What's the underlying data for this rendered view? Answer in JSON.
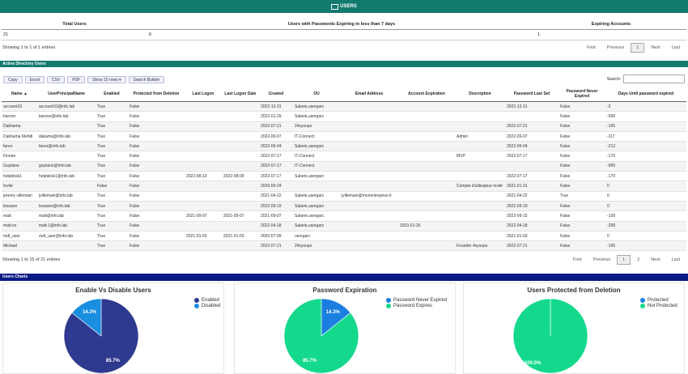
{
  "header": {
    "title": "USERS",
    "icon": "mail-icon"
  },
  "summary": {
    "headers": [
      "Total Users",
      "Users with Passwords Expiring in less than 7 days",
      "Expiring Accounts"
    ],
    "values": [
      "21",
      "6",
      "1"
    ],
    "info": "Showing 1 to 1 of 1 entries",
    "pager": {
      "first": "First",
      "previous": "Previous",
      "page": "1",
      "next": "Next",
      "last": "Last"
    }
  },
  "ad_section": {
    "title": "Active Directory Users",
    "buttons": [
      "Copy",
      "Excel",
      "CSV",
      "PDF",
      "Show 15 rows ▾",
      "Search Builder"
    ],
    "search_label": "Search:",
    "search_value": "",
    "columns": [
      "Name ▲",
      "UserPrincipalName",
      "Enabled",
      "Protected from Deletion",
      "Last Logon",
      "Last Logon Date",
      "Created",
      "OU",
      "Email Address",
      "Account Expiration",
      "Description",
      "Password Last Set",
      "Password Never Expired",
      "Days Until password expired"
    ],
    "rows": [
      [
        "account10",
        "account10@info.lab",
        "True",
        "False",
        "",
        "",
        "2022-12-31",
        "Salarie,usergarc",
        "",
        "",
        "",
        "2022-12-31",
        "False",
        "-2"
      ],
      [
        "barzon",
        "barzon@info.lab",
        "True",
        "False",
        "",
        "",
        "2022-01-29",
        "Salarie,usergarc",
        "",
        "",
        "",
        "",
        "False",
        "-999"
      ],
      [
        "Dakhama",
        "",
        "True",
        "False",
        "",
        "",
        "2022-07-21",
        "24sysops",
        "",
        "",
        "",
        "2022-07-21",
        "False",
        "-165"
      ],
      [
        "Dakhama Mehdi",
        "dakama@info.lab",
        "True",
        "False",
        "",
        "",
        "2022-09-07",
        "IT-Connect",
        "",
        "",
        "Admin",
        "2022-09-07",
        "False",
        "-117"
      ],
      [
        "fanor",
        "fanor@info.lab",
        "True",
        "False",
        "",
        "",
        "2022-06-04",
        "Salarie,usergarc",
        "",
        "",
        "",
        "2022-06-04",
        "False",
        "-212"
      ],
      [
        "Florian",
        "",
        "True",
        "False",
        "",
        "",
        "2022-07-17",
        "IT-Connect",
        "",
        "",
        "MVP",
        "2022-07-17",
        "False",
        "-170"
      ],
      [
        "Guylaine",
        "guylaine@info.lab",
        "True",
        "False",
        "",
        "",
        "2022-07-17",
        "IT-Connect",
        "",
        "",
        "",
        "",
        "False",
        "-999"
      ],
      [
        "helpdesk1",
        "helpdesk1@info.lab",
        "True",
        "False",
        "2022-08-10",
        "2022-08-09",
        "2022-07-17",
        "Salarie,usergarc",
        "",
        "",
        "",
        "2022-07-17",
        "False",
        "-170"
      ],
      [
        "Invité",
        "",
        "False",
        "False",
        "",
        "",
        "2020-09-24",
        "",
        "",
        "",
        "Compte d'utilisateur invité",
        "2021-01-31",
        "False",
        "0"
      ],
      [
        "jeremy villemain",
        "jvillemain@info.lab",
        "True",
        "False",
        "",
        "",
        "2021-04-22",
        "Salarie,usergarc",
        "jvillemain@monentreprise.fr",
        "",
        "",
        "2021-04-22",
        "True",
        "0"
      ],
      [
        "lessane",
        "lessane@info.lab",
        "True",
        "False",
        "",
        "",
        "2022-09-19",
        "Salarie,usergarc",
        "",
        "",
        "",
        "2022-09-19",
        "False",
        "0"
      ],
      [
        "matt",
        "matt@info.lab",
        "True",
        "False",
        "2021-09-07",
        "2021-09-07",
        "2021-09-07",
        "Salarie,usergarc",
        "",
        "",
        "",
        "2022-09-15",
        "False",
        "-109"
      ],
      [
        "matt.ex",
        "matt.1@info.lab",
        "True",
        "False",
        "",
        "",
        "2022-04-18",
        "Salarie,usergarc",
        "",
        "2023-01-25",
        "",
        "2022-04-18",
        "False",
        "-258"
      ],
      [
        "mdt_user",
        "mdt_user@info.lab",
        "True",
        "False",
        "2021-01-03",
        "2021-01-03",
        "2020-07-09",
        "usergarc",
        "",
        "",
        "",
        "2021-01-03",
        "False",
        "0"
      ],
      [
        "Michael",
        "",
        "True",
        "False",
        "",
        "",
        "2022-07-21",
        "24sysops",
        "",
        "",
        "Founder 4sysops",
        "2022-07-21",
        "False",
        "-165"
      ]
    ],
    "info": "Showing 1 to 15 of 21 entries",
    "pager": {
      "first": "First",
      "previous": "Previous",
      "pages": [
        "1",
        "2"
      ],
      "next": "Next",
      "last": "Last"
    }
  },
  "charts_section": {
    "title": "Users Charts"
  },
  "charts": [
    {
      "title": "Enable Vs Disable Users",
      "slices": [
        {
          "label": "Enabled",
          "value": 85.7,
          "text": "85.7%",
          "color": "#2e3a8f"
        },
        {
          "label": "Disabled",
          "value": 14.3,
          "text": "14.3%",
          "color": "#1a8fe0"
        }
      ]
    },
    {
      "title": "Password Expiration",
      "slices": [
        {
          "label": "Password Never Expired",
          "value": 14.3,
          "text": "14.3%",
          "color": "#1a7fe0"
        },
        {
          "label": "Password Expires",
          "value": 85.7,
          "text": "85.7%",
          "color": "#14d98c"
        }
      ]
    },
    {
      "title": "Users Protected from Deletion",
      "slices": [
        {
          "label": "Protected",
          "value": 0,
          "text": "",
          "color": "#1a7fe0"
        },
        {
          "label": "Not Protected",
          "value": 100,
          "text": "100.0%",
          "color": "#14d98c"
        }
      ]
    }
  ]
}
